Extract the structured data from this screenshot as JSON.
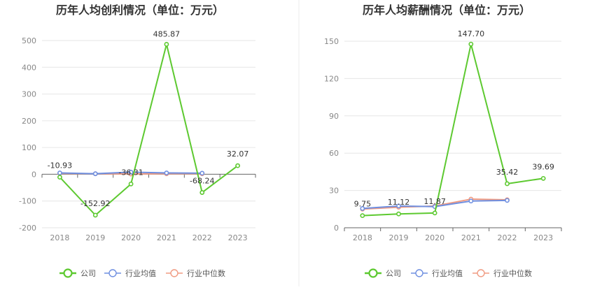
{
  "chart_data": [
    {
      "type": "line",
      "title": "历年人均创利情况（单位：万元）",
      "categories": [
        "2018",
        "2019",
        "2020",
        "2021",
        "2022",
        "2023"
      ],
      "ylim": [
        -200,
        500
      ],
      "yticks": [
        -200,
        -100,
        0,
        100,
        200,
        300,
        400,
        500
      ],
      "ytick_labels": [
        "-200",
        "-100",
        "0",
        "100",
        "200",
        "300",
        "400",
        "500"
      ],
      "grid": true,
      "legend_position": "bottom",
      "series": [
        {
          "name": "公司",
          "color": "#5dc930",
          "values": [
            -10.93,
            -152.92,
            -36.31,
            485.87,
            -68.24,
            32.07
          ],
          "labels": [
            "-10.93",
            "-152.92",
            "-36.31",
            "485.87",
            "-68.24",
            "32.07"
          ]
        },
        {
          "name": "行业均值",
          "color": "#6f8fe0",
          "values": [
            5,
            2,
            8,
            5,
            4,
            null
          ]
        },
        {
          "name": "行业中位数",
          "color": "#f09b82",
          "values": [
            3,
            2,
            1,
            2,
            2,
            null
          ]
        }
      ]
    },
    {
      "type": "line",
      "title": "历年人均薪酬情况（单位：万元）",
      "categories": [
        "2018",
        "2019",
        "2020",
        "2021",
        "2022",
        "2023"
      ],
      "ylim": [
        0,
        150
      ],
      "yticks": [
        0,
        30,
        60,
        90,
        120,
        150
      ],
      "ytick_labels": [
        "0",
        "30",
        "60",
        "90",
        "120",
        "150"
      ],
      "grid": true,
      "legend_position": "bottom",
      "series": [
        {
          "name": "公司",
          "color": "#5dc930",
          "values": [
            9.75,
            11.12,
            11.87,
            147.7,
            35.42,
            39.69
          ],
          "labels": [
            "9.75",
            "11.12",
            "11.87",
            "147.70",
            "35.42",
            "39.69"
          ]
        },
        {
          "name": "行业均值",
          "color": "#6f8fe0",
          "values": [
            15.5,
            17.5,
            17.0,
            21.5,
            22.0,
            null
          ]
        },
        {
          "name": "行业中位数",
          "color": "#f09b82",
          "values": [
            15.0,
            16.5,
            17.5,
            23.0,
            22.5,
            null
          ]
        }
      ]
    }
  ]
}
